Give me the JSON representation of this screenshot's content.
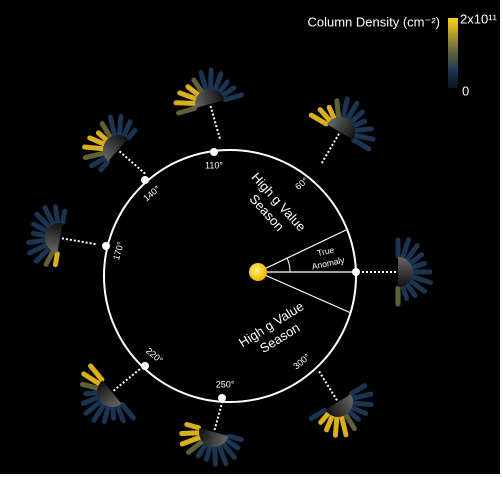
{
  "colorbar": {
    "title": "Column Density (cm⁻²)",
    "max_label": "2x10¹¹",
    "min_label": "0"
  },
  "orbit": {
    "angle_labels": [
      "110°",
      "60°",
      "140°",
      "170°",
      "220°",
      "250°",
      "300°"
    ],
    "upper_season": [
      "High g Value",
      "Season"
    ],
    "lower_season": [
      "High g Value",
      "Season"
    ],
    "anomaly_label": [
      "True",
      "Anomaly"
    ]
  }
}
